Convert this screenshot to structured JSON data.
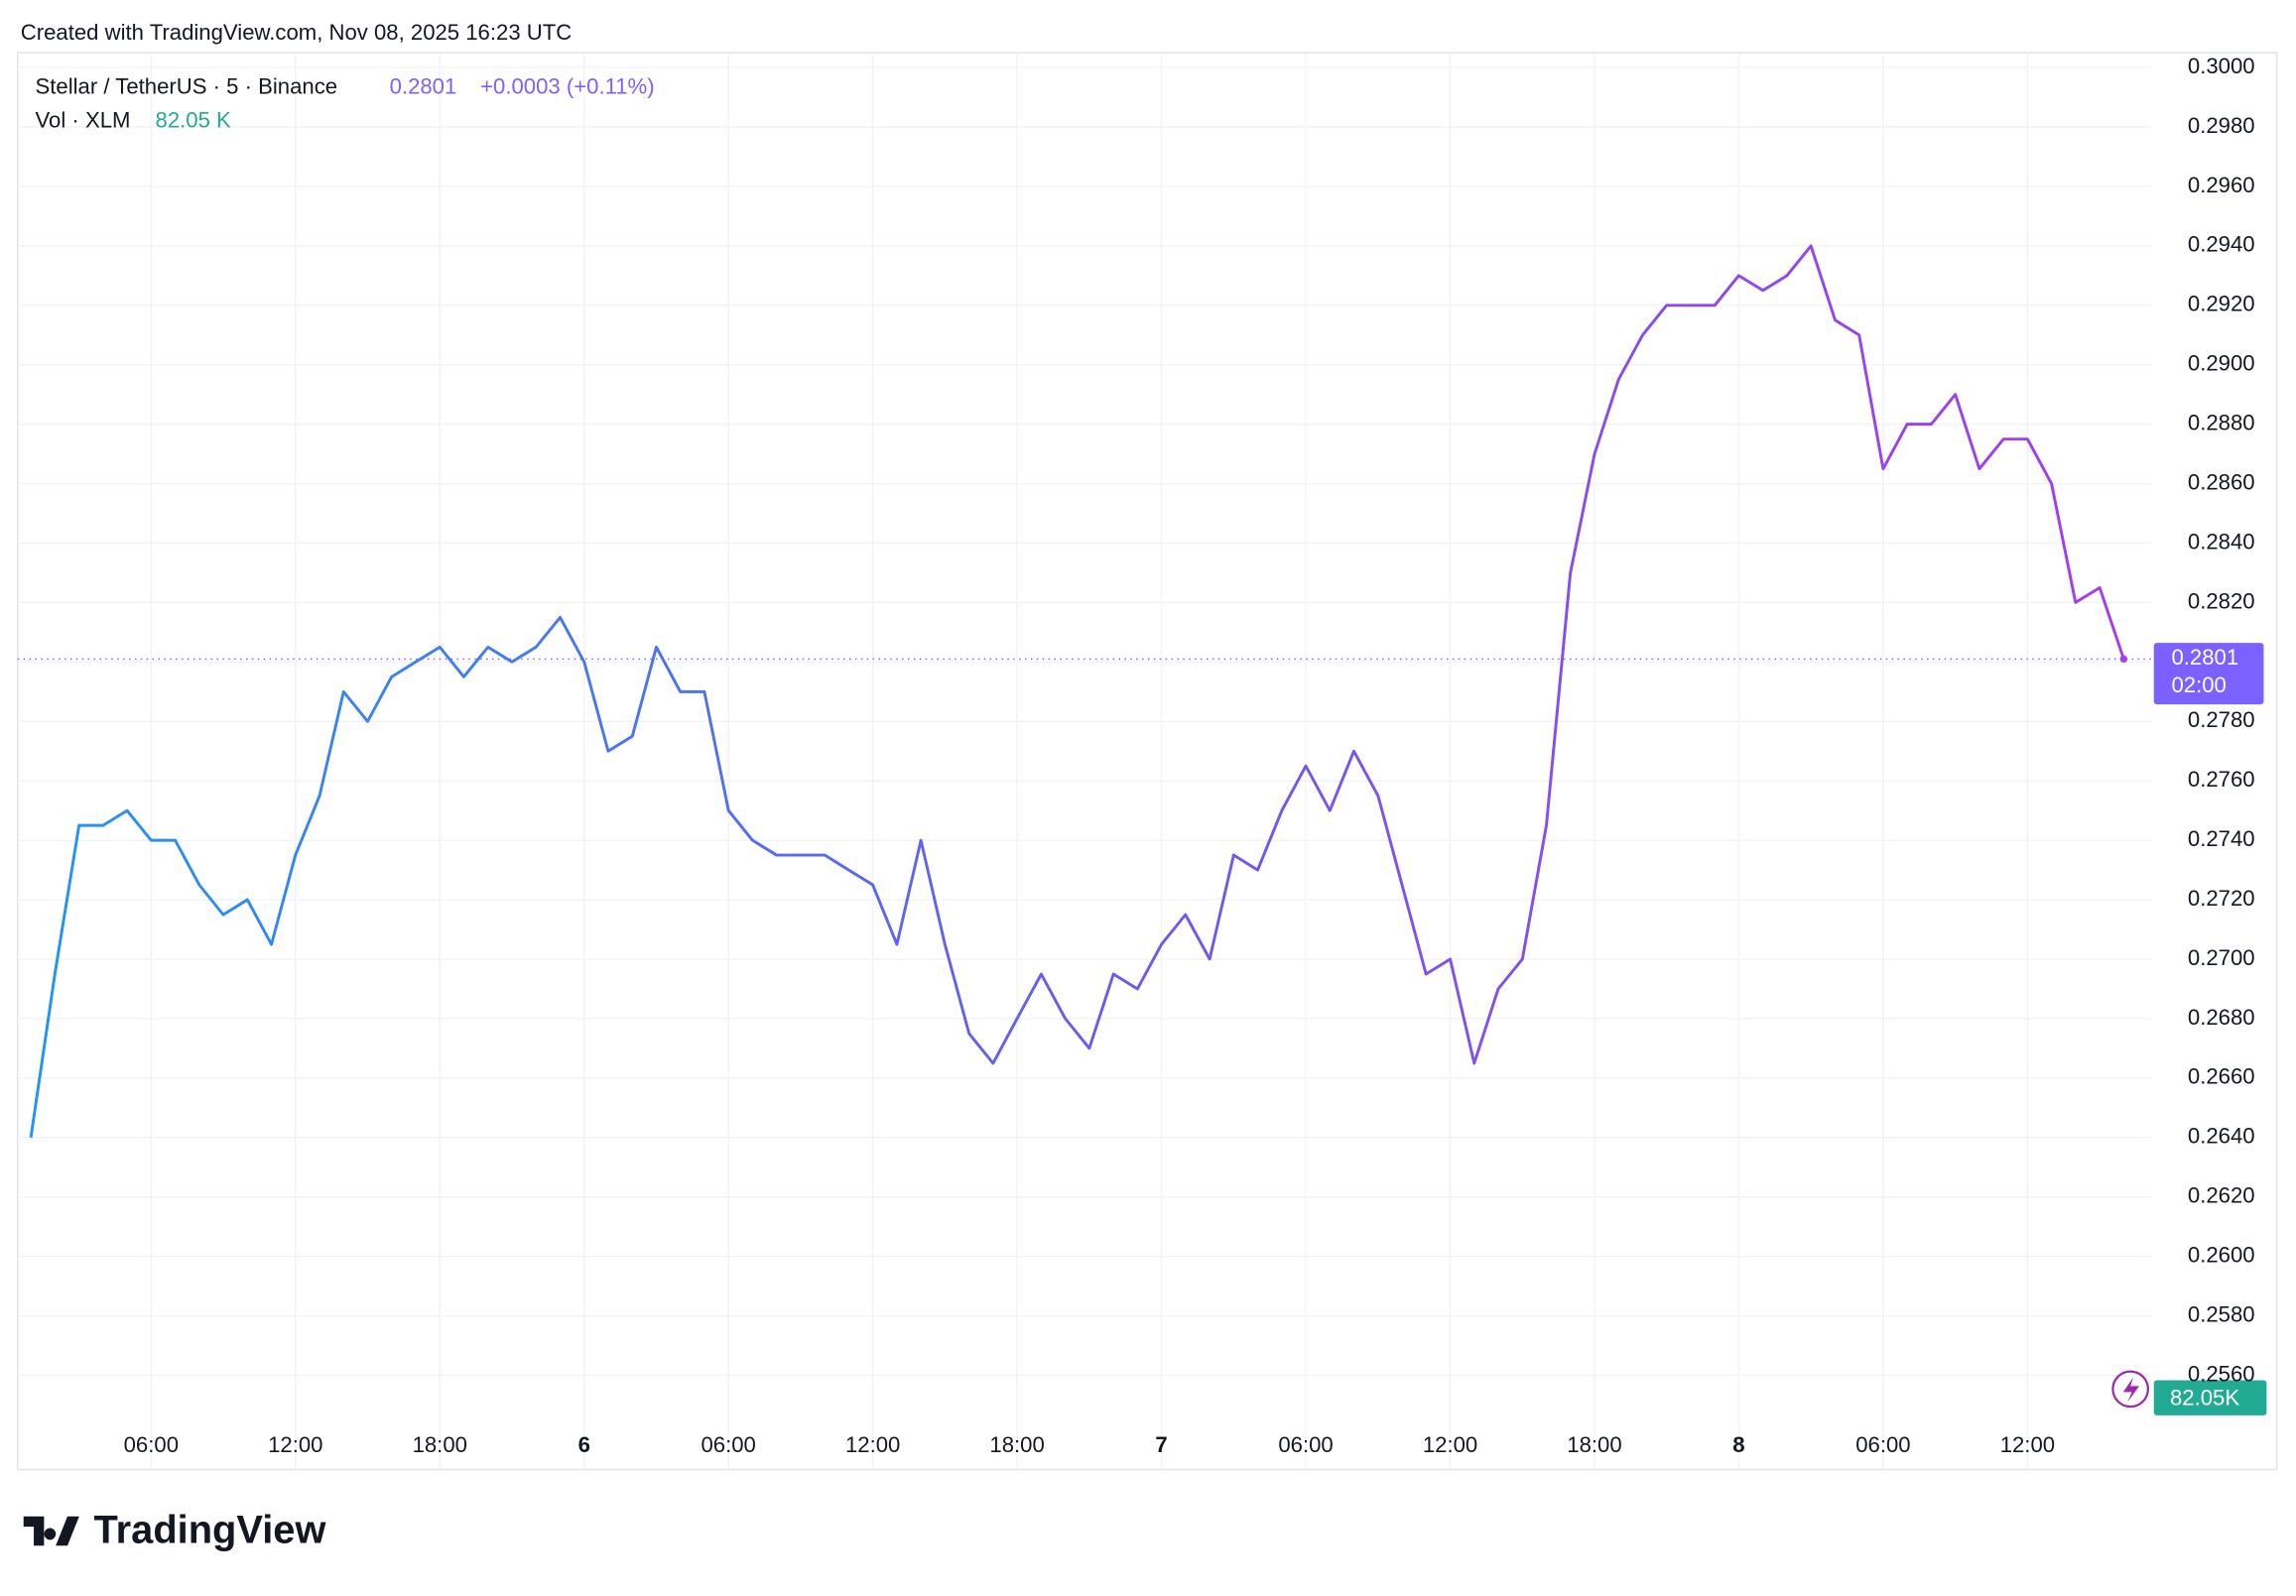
{
  "header": {
    "created": "Created with TradingView.com, Nov 08, 2025 16:23 UTC",
    "symbol": "Stellar / TetherUS · 5 · Binance",
    "price": "0.2801",
    "change": "+0.0003 (+0.11%)",
    "volume_label": "Vol · XLM",
    "volume_value": "82.05 K",
    "badge_time": "02:00",
    "volume_badge": "82.05K"
  },
  "footer": {
    "logo": "TradingView"
  },
  "chart_data": {
    "type": "line",
    "categories": [
      null,
      null,
      null,
      null,
      null,
      "06:00",
      null,
      null,
      null,
      null,
      null,
      "12:00",
      null,
      null,
      null,
      null,
      null,
      "18:00",
      null,
      null,
      null,
      null,
      null,
      "6",
      null,
      null,
      null,
      null,
      null,
      "06:00",
      null,
      null,
      null,
      null,
      null,
      "12:00",
      null,
      null,
      null,
      null,
      null,
      "18:00",
      null,
      null,
      null,
      null,
      null,
      "7",
      null,
      null,
      null,
      null,
      null,
      "06:00",
      null,
      null,
      null,
      null,
      null,
      "12:00",
      null,
      null,
      null,
      null,
      null,
      "18:00",
      null,
      null,
      null,
      null,
      null,
      "8",
      null,
      null,
      null,
      null,
      null,
      "06:00",
      null,
      null,
      null,
      null,
      null,
      "12:00",
      null,
      null,
      null,
      null
    ],
    "series": [
      {
        "name": "Stellar / TetherUS",
        "color_stops": [
          "#2196f3",
          "#6a5cf0",
          "#a53cf2"
        ],
        "values": [
          0.264,
          0.2695,
          0.2745,
          0.2745,
          0.275,
          0.274,
          0.274,
          0.2725,
          0.2715,
          0.272,
          0.2705,
          0.2735,
          0.2755,
          0.279,
          0.278,
          0.2795,
          0.28,
          0.2805,
          0.2795,
          0.2805,
          0.28,
          0.2805,
          0.2815,
          0.28,
          0.277,
          0.2775,
          0.2805,
          0.279,
          0.279,
          0.275,
          0.274,
          0.2735,
          0.2735,
          0.2735,
          0.273,
          0.2725,
          0.2705,
          0.274,
          0.2705,
          0.2675,
          0.2665,
          0.268,
          0.2695,
          0.268,
          0.267,
          0.2695,
          0.269,
          0.2705,
          0.2715,
          0.27,
          0.2735,
          0.273,
          0.275,
          0.2765,
          0.275,
          0.277,
          0.2755,
          0.2725,
          0.2695,
          0.27,
          0.2665,
          0.269,
          0.27,
          0.2745,
          0.283,
          0.287,
          0.2895,
          0.291,
          0.292,
          0.292,
          0.292,
          0.293,
          0.2925,
          0.293,
          0.294,
          0.2915,
          0.291,
          0.2865,
          0.288,
          0.288,
          0.289,
          0.2865,
          0.2875,
          0.2875,
          0.286,
          0.282,
          0.2825,
          0.2801
        ]
      }
    ],
    "ylim": [
      0.2547,
      0.3004
    ],
    "yticks": [
      {
        "value": 0.256,
        "label": "0.2560"
      },
      {
        "value": 0.258,
        "label": "0.2580"
      },
      {
        "value": 0.26,
        "label": "0.2600"
      },
      {
        "value": 0.262,
        "label": "0.2620"
      },
      {
        "value": 0.264,
        "label": "0.2640"
      },
      {
        "value": 0.266,
        "label": "0.2660"
      },
      {
        "value": 0.268,
        "label": "0.2680"
      },
      {
        "value": 0.27,
        "label": "0.2700"
      },
      {
        "value": 0.272,
        "label": "0.2720"
      },
      {
        "value": 0.274,
        "label": "0.2740"
      },
      {
        "value": 0.276,
        "label": "0.2760"
      },
      {
        "value": 0.278,
        "label": "0.2780"
      },
      {
        "value": 0.28,
        "label": "0.2800"
      },
      {
        "value": 0.282,
        "label": "0.2820"
      },
      {
        "value": 0.284,
        "label": "0.2840"
      },
      {
        "value": 0.286,
        "label": "0.2860"
      },
      {
        "value": 0.288,
        "label": "0.2880"
      },
      {
        "value": 0.29,
        "label": "0.2900"
      },
      {
        "value": 0.292,
        "label": "0.2920"
      },
      {
        "value": 0.294,
        "label": "0.2940"
      },
      {
        "value": 0.296,
        "label": "0.2960"
      },
      {
        "value": 0.298,
        "label": "0.2980"
      },
      {
        "value": 0.3,
        "label": "0.3000"
      }
    ],
    "grid": true
  }
}
